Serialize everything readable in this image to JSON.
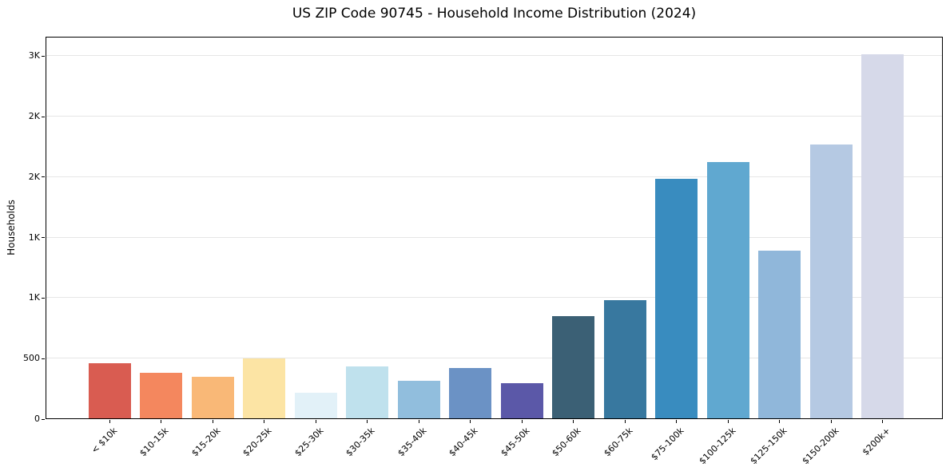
{
  "chart_data": {
    "type": "bar",
    "title": "US ZIP Code 90745 - Household Income Distribution (2024)",
    "xlabel": "",
    "ylabel": "Households",
    "categories": [
      "< $10k",
      "$10-15k",
      "$15-20k",
      "$20-25k",
      "$25-30k",
      "$30-35k",
      "$35-40k",
      "$40-45k",
      "$45-50k",
      "$50-60k",
      "$60-75k",
      "$75-100k",
      "$100-125k",
      "$125-150k",
      "$150-200k",
      "$200k+"
    ],
    "values": [
      465,
      382,
      351,
      503,
      219,
      436,
      318,
      423,
      298,
      851,
      983,
      1986,
      2127,
      1394,
      2269,
      3013
    ],
    "bar_colors": [
      "#d95c51",
      "#f4875e",
      "#f9b877",
      "#fce4a4",
      "#e2f1f8",
      "#bfe1ed",
      "#91bedd",
      "#6b92c5",
      "#5b58a8",
      "#3b6075",
      "#38789f",
      "#398cbf",
      "#60a8d0",
      "#90b7da",
      "#b5c9e3",
      "#d6d9e9"
    ],
    "ylim": [
      0,
      3160
    ],
    "yticks": {
      "values": [
        0,
        500,
        1000,
        1500,
        2000,
        2500,
        3000
      ],
      "labels": [
        "0",
        "500",
        "1K",
        "1K",
        "2K",
        "2K",
        "3K"
      ]
    },
    "grid": "horizontal y-gridlines",
    "legend": "none",
    "x_tick_rotation_deg": 45
  },
  "style": {
    "background": "#ffffff",
    "grid_color": "#e6e6e6",
    "axis_color": "#000000",
    "text_color": "#000000"
  }
}
